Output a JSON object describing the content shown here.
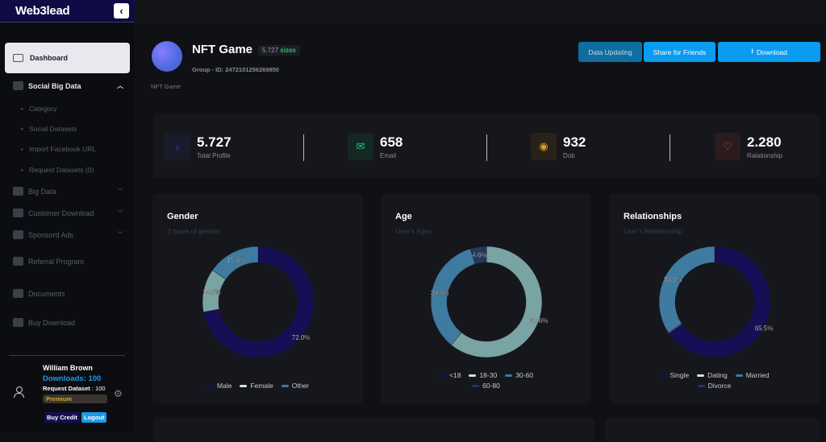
{
  "app": {
    "logo": "Web3lead"
  },
  "sidebar": {
    "dashboard": "Dashboard",
    "social": "Social Big Data",
    "subs": [
      "Category",
      "Social Datasets",
      "Import Facebook URL",
      "Request Datasets (0)"
    ],
    "items": [
      {
        "label": "Big Data",
        "icon": "database-icon",
        "chev": true
      },
      {
        "label": "Customer Download",
        "icon": "image-folder-icon",
        "chev": true
      },
      {
        "label": "Sponsord Ads",
        "icon": "facebook-icon",
        "chev": true
      },
      {
        "label": "Referral Program",
        "icon": "users-icon"
      },
      {
        "label": "Documents",
        "icon": "question-icon"
      },
      {
        "label": "Buy Download",
        "icon": "credit-card-icon"
      }
    ]
  },
  "user": {
    "name": "William Brown",
    "downloads": "Downloads: 100",
    "request_label": "Request Dataset",
    "request_value": ": 100",
    "plan": "Premium",
    "buy": "Buy Credit",
    "logout": "Logout"
  },
  "header": {
    "title": "NFT Game",
    "size_num": "5.727",
    "size_unit": "sizes",
    "group": "Group - ID: 2472101256269850",
    "caption": "NFT Game",
    "btn_update": "Data Updating",
    "btn_share": "Share for Friends",
    "btn_download": "Download"
  },
  "stats": [
    {
      "value": "5.727",
      "label": "Total Profile",
      "color": "#3b3fd0"
    },
    {
      "value": "658",
      "label": "Email",
      "color": "#2fbf8f"
    },
    {
      "value": "932",
      "label": "Dob",
      "color": "#e0a020"
    },
    {
      "value": "2.280",
      "label": "Ralationship",
      "color": "#e04848"
    }
  ],
  "chart_data": [
    {
      "type": "pie",
      "title": "Gender",
      "subtitle": "3 types of gender",
      "categories": [
        "Male",
        "Female",
        "Other"
      ],
      "values": [
        72.0,
        12.6,
        15.3
      ],
      "colors": [
        "#160f55",
        "#7aa3a3",
        "#3f7aa0"
      ]
    },
    {
      "type": "pie",
      "title": "Age",
      "subtitle": "User's Ages",
      "categories": [
        "<18",
        "18-30",
        "30-60",
        "60-80"
      ],
      "values": [
        0,
        60.6,
        34.4,
        4.6
      ],
      "colors": [
        "#160f55",
        "#7aa3a3",
        "#3f7aa0",
        "#1e3a60"
      ]
    },
    {
      "type": "pie",
      "title": "Relationships",
      "subtitle": "User's Relationship",
      "categories": [
        "Single",
        "Dating",
        "Married",
        "Divorce"
      ],
      "values": [
        65.5,
        0.3,
        34.2,
        0
      ],
      "colors": [
        "#160f55",
        "#7aa3a3",
        "#3f7aa0",
        "#1e3a60"
      ]
    }
  ]
}
